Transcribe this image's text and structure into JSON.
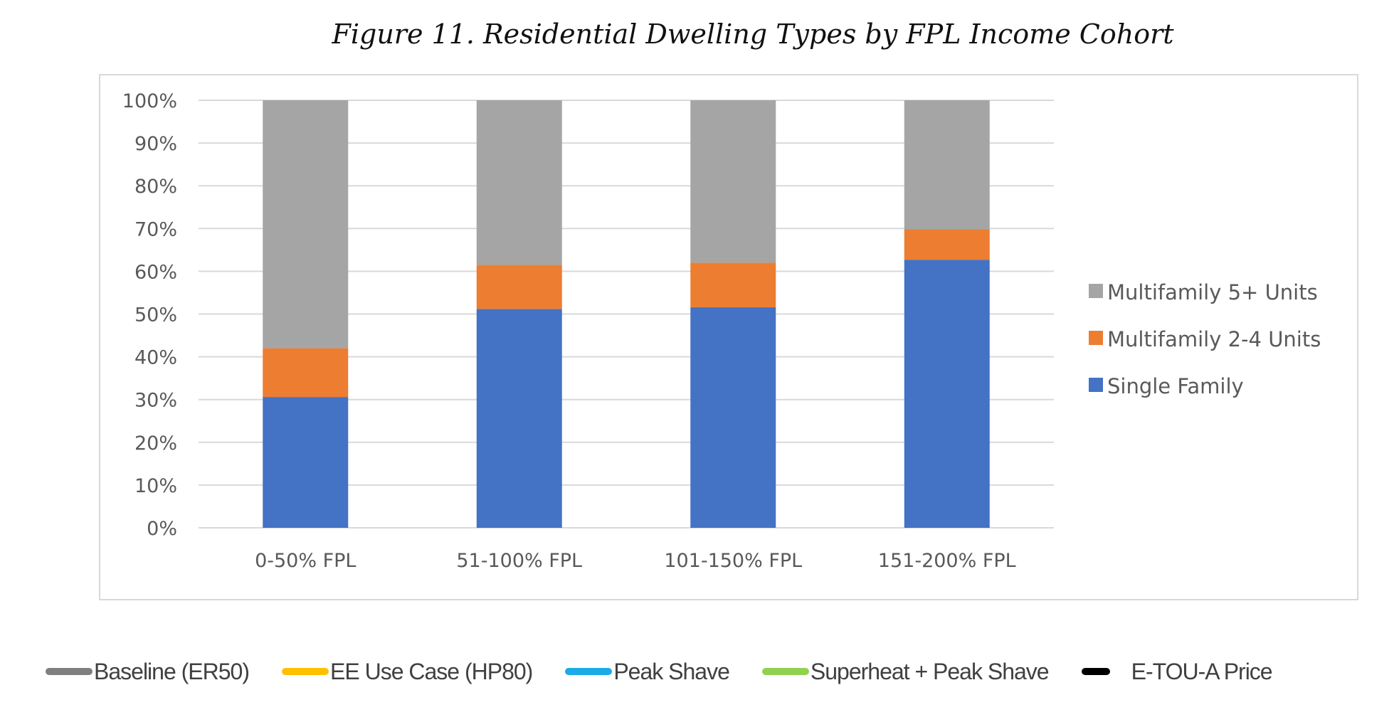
{
  "figure": {
    "title": "Figure 11. Residential Dwelling Types by FPL Income Cohort"
  },
  "chart_data": {
    "type": "bar",
    "stacked": true,
    "title": "Figure 11. Residential Dwelling Types by FPL Income Cohort",
    "xlabel": "",
    "ylabel": "",
    "ylim": [
      0,
      100
    ],
    "y_ticks": [
      "0%",
      "10%",
      "20%",
      "30%",
      "40%",
      "50%",
      "60%",
      "70%",
      "80%",
      "90%",
      "100%"
    ],
    "grid": true,
    "legend_position": "right",
    "categories": [
      "0-50% FPL",
      "51-100% FPL",
      "101-150% FPL",
      "151-200% FPL"
    ],
    "series": [
      {
        "name": "Single Family",
        "color": "#4472C4",
        "values": [
          30.6,
          51.2,
          51.6,
          62.7
        ]
      },
      {
        "name": "Multifamily 2-4 Units",
        "color": "#ED7D31",
        "values": [
          11.4,
          10.3,
          10.4,
          7.1
        ]
      },
      {
        "name": "Multifamily 5+ Units",
        "color": "#A5A5A5",
        "values": [
          58.0,
          38.5,
          38.0,
          30.2
        ]
      }
    ],
    "legend_order": [
      "Multifamily 5+ Units",
      "Multifamily 2-4 Units",
      "Single Family"
    ]
  },
  "bottom_legend": {
    "items": [
      {
        "label": "Baseline (ER50)",
        "color": "#7F7F7F"
      },
      {
        "label": "EE Use Case (HP80)",
        "color": "#FFC000"
      },
      {
        "label": "Peak Shave",
        "color": "#1AABE8"
      },
      {
        "label": "Superheat + Peak Shave",
        "color": "#92D050"
      },
      {
        "label": "E-TOU-A Price",
        "color": "#000000"
      }
    ]
  }
}
